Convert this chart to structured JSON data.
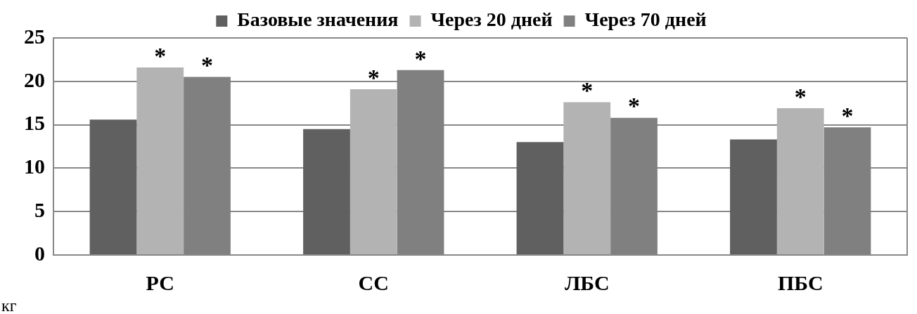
{
  "chart_data": {
    "type": "bar",
    "ylabel": "кг",
    "categories": [
      "РС",
      "СС",
      "ЛБС",
      "ПБС"
    ],
    "series": [
      {
        "name": "Базовые значения",
        "color": "#606060",
        "values": [
          15.6,
          14.5,
          13.0,
          13.3
        ]
      },
      {
        "name": "Через 20 дней",
        "color": "#b3b3b3",
        "values": [
          21.6,
          19.1,
          17.6,
          16.9
        ]
      },
      {
        "name": "Через 70 дней",
        "color": "#808080",
        "values": [
          20.5,
          21.3,
          15.8,
          14.7
        ]
      }
    ],
    "ylim": [
      0,
      25
    ],
    "yticks": [
      0,
      5,
      10,
      15,
      20,
      25
    ],
    "grid": "y",
    "legend": "top",
    "annotations": [
      "*",
      "*",
      "*",
      "*",
      "*",
      "*",
      "*",
      "*"
    ]
  }
}
